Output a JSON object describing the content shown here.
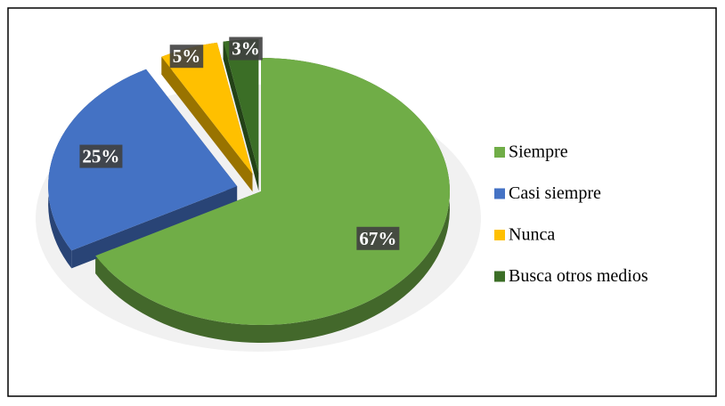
{
  "chart_data": {
    "type": "pie",
    "categories": [
      "Siempre",
      "Casi siempre",
      "Nunca",
      "Busca otros medios"
    ],
    "values": [
      67,
      25,
      5,
      3
    ],
    "value_labels": [
      "67%",
      "25%",
      "5%",
      "3%"
    ],
    "colors": [
      "#70ad47",
      "#4472c4",
      "#ffc000",
      "#3b6e26"
    ],
    "legend": "right"
  }
}
